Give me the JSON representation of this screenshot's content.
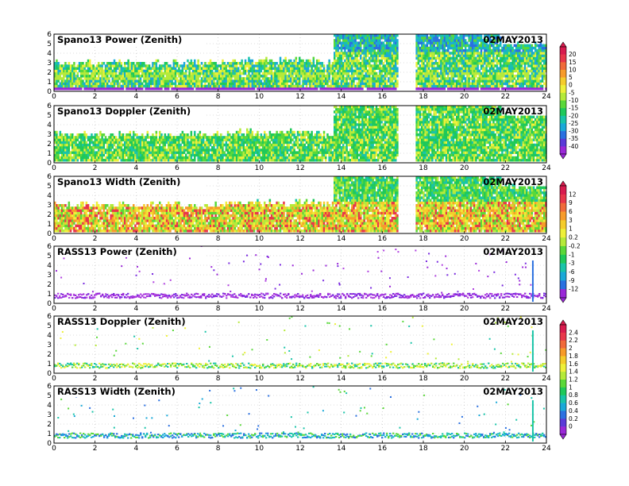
{
  "chart_data": [
    {
      "type": "heatmap",
      "title": "Spano13 Power (Zenith)",
      "date": "02MAY2013",
      "xlim": [
        0,
        24
      ],
      "ylim": [
        0,
        6
      ],
      "x_ticks": [
        "0",
        "2",
        "4",
        "6",
        "8",
        "10",
        "12",
        "14",
        "16",
        "18",
        "20",
        "22",
        "24"
      ],
      "y_ticks": [
        "0",
        "1",
        "2",
        "3",
        "4",
        "5",
        "6"
      ],
      "grid": true
    },
    {
      "type": "heatmap",
      "title": "Spano13 Doppler (Zenith)",
      "date": "02MAY2013",
      "xlim": [
        0,
        24
      ],
      "ylim": [
        0,
        6
      ],
      "x_ticks": [
        "0",
        "2",
        "4",
        "6",
        "8",
        "10",
        "12",
        "14",
        "16",
        "18",
        "20",
        "22",
        "24"
      ],
      "y_ticks": [
        "0",
        "1",
        "2",
        "3",
        "4",
        "5",
        "6"
      ],
      "grid": true
    },
    {
      "type": "heatmap",
      "title": "Spano13 Width (Zenith)",
      "date": "02MAY2013",
      "xlim": [
        0,
        24
      ],
      "ylim": [
        0,
        6
      ],
      "x_ticks": [
        "0",
        "2",
        "4",
        "6",
        "8",
        "10",
        "12",
        "14",
        "16",
        "18",
        "20",
        "22",
        "24"
      ],
      "y_ticks": [
        "0",
        "1",
        "2",
        "3",
        "4",
        "5",
        "6"
      ],
      "grid": true
    },
    {
      "type": "heatmap",
      "title": "RASS13 Power (Zenith)",
      "date": "02MAY2013",
      "xlim": [
        0,
        24
      ],
      "ylim": [
        0,
        6
      ],
      "x_ticks": [
        "0",
        "2",
        "4",
        "6",
        "8",
        "10",
        "12",
        "14",
        "16",
        "18",
        "20",
        "22",
        "24"
      ],
      "y_ticks": [
        "0",
        "1",
        "2",
        "3",
        "4",
        "5",
        "6"
      ],
      "grid": true
    },
    {
      "type": "heatmap",
      "title": "RASS13 Doppler (Zenith)",
      "date": "02MAY2013",
      "xlim": [
        0,
        24
      ],
      "ylim": [
        0,
        6
      ],
      "x_ticks": [
        "0",
        "2",
        "4",
        "6",
        "8",
        "10",
        "12",
        "14",
        "16",
        "18",
        "20",
        "22",
        "24"
      ],
      "y_ticks": [
        "0",
        "1",
        "2",
        "3",
        "4",
        "5",
        "6"
      ],
      "grid": true
    },
    {
      "type": "heatmap",
      "title": "RASS13 Width (Zenith)",
      "date": "02MAY2013",
      "xlim": [
        0,
        24
      ],
      "ylim": [
        0,
        6
      ],
      "x_ticks": [
        "0",
        "2",
        "4",
        "6",
        "8",
        "10",
        "12",
        "14",
        "16",
        "18",
        "20",
        "22",
        "24"
      ],
      "y_ticks": [
        "0",
        "1",
        "2",
        "3",
        "4",
        "5",
        "6"
      ],
      "grid": true
    }
  ],
  "colorbars": [
    {
      "labels": [
        "20",
        "15",
        "10",
        "5",
        "0",
        "-5",
        "-10",
        "-15",
        "-20",
        "-25",
        "-30",
        "-35",
        "-40"
      ],
      "colors": [
        "#d81b4e",
        "#e8364a",
        "#f06a3a",
        "#f79b2a",
        "#f5cc2b",
        "#eef03a",
        "#b5ea3a",
        "#5ad83a",
        "#1fc95a",
        "#19c4a8",
        "#1aa9d8",
        "#2a70e0",
        "#5a3ad8",
        "#9a28d8"
      ]
    },
    {
      "labels": [
        "12",
        "9",
        "6",
        "3",
        "1",
        "0.2",
        "-0.2",
        "-1",
        "-3",
        "-6",
        "-9",
        "-12"
      ],
      "colors": [
        "#d81b4e",
        "#e8364a",
        "#f06a3a",
        "#f79b2a",
        "#f5cc2b",
        "#eef03a",
        "#b5ea3a",
        "#5ad83a",
        "#1fc95a",
        "#19c4a8",
        "#1aa9d8",
        "#2a70e0",
        "#9a28d8"
      ]
    },
    {
      "labels": [
        "2.4",
        "2.2",
        "2",
        "1.8",
        "1.6",
        "1.4",
        "1.2",
        "1",
        "0.8",
        "0.6",
        "0.4",
        "0.2",
        "0"
      ],
      "colors": [
        "#d81b4e",
        "#e8364a",
        "#f06a3a",
        "#f79b2a",
        "#f5cc2b",
        "#eef03a",
        "#b5ea3a",
        "#5ad83a",
        "#1fc95a",
        "#19c4a8",
        "#1aa9d8",
        "#2a70e0",
        "#5a3ad8",
        "#9a28d8"
      ]
    }
  ]
}
